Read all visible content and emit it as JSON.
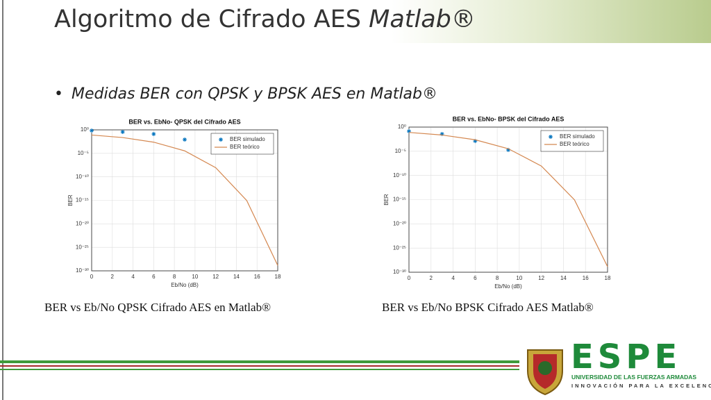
{
  "slide": {
    "title": "Algoritmo de Cifrado AES",
    "title_emphasis": "Matlab®",
    "bullet": "Medidas BER con QPSK y BPSK AES en Matlab®",
    "captions": [
      "BER vs Eb/No QPSK Cifrado AES en Matlab®",
      "BER vs Eb/No BPSK Cifrado AES Matlab®"
    ],
    "logo": {
      "name": "ESPE",
      "line1": "UNIVERSIDAD DE LAS FUERZAS ARMADAS",
      "line2": "INNOVACIÓN PARA LA EXCELENCIA"
    }
  },
  "chart_data": [
    {
      "type": "line",
      "title": "BER vs. EbNo- QPSK del Cifrado AES",
      "x_label": "Eb/No (dB)",
      "y_label": "BER",
      "log_scale": true,
      "grid": true,
      "legend": "north-east",
      "xlim": [
        0,
        18
      ],
      "xticks": [
        0,
        2,
        4,
        6,
        8,
        10,
        12,
        14,
        16,
        18
      ],
      "ylim": [
        1e-30,
        1
      ],
      "yticks": [
        {
          "value": 1,
          "label": "10⁰"
        },
        {
          "value": 1e-05,
          "label": "10⁻⁵"
        },
        {
          "value": 1e-10,
          "label": "10⁻¹⁰"
        },
        {
          "value": 1e-15,
          "label": "10⁻¹⁵"
        },
        {
          "value": 1e-20,
          "label": "10⁻²⁰"
        },
        {
          "value": 1e-25,
          "label": "10⁻²⁵"
        },
        {
          "value": 1e-30,
          "label": "10⁻³⁰"
        }
      ],
      "series": [
        {
          "name": "BER simulado",
          "mode": "markers",
          "color": "#0072bd",
          "x": [
            0,
            3,
            6,
            9
          ],
          "values": [
            0.7,
            0.36,
            0.13,
            0.0085
          ]
        },
        {
          "name": "BER teórico",
          "mode": "line",
          "color": "#d4874f",
          "x": [
            0,
            3,
            6,
            9,
            12,
            15,
            18
          ],
          "values": [
            0.079,
            0.023,
            0.0024,
            3.4e-05,
            9e-09,
            9.4e-16,
            1.4e-29
          ]
        }
      ]
    },
    {
      "type": "line",
      "title": "BER vs. EbNo- BPSK del Cifrado AES",
      "x_label": "Eb/No (dB)",
      "y_label": "BER",
      "log_scale": true,
      "grid": true,
      "legend": "north-east",
      "xlim": [
        0,
        18
      ],
      "xticks": [
        0,
        2,
        4,
        6,
        8,
        10,
        12,
        14,
        16,
        18
      ],
      "ylim": [
        1e-30,
        1
      ],
      "yticks": [
        {
          "value": 1,
          "label": "10⁰"
        },
        {
          "value": 1e-05,
          "label": "10⁻⁵"
        },
        {
          "value": 1e-10,
          "label": "10⁻¹⁰"
        },
        {
          "value": 1e-15,
          "label": "10⁻¹⁵"
        },
        {
          "value": 1e-20,
          "label": "10⁻²⁰"
        },
        {
          "value": 1e-25,
          "label": "10⁻²⁵"
        },
        {
          "value": 1e-30,
          "label": "10⁻³⁰"
        }
      ],
      "series": [
        {
          "name": "BER simulado",
          "mode": "markers",
          "color": "#0072bd",
          "x": [
            0,
            3,
            6,
            9
          ],
          "values": [
            0.14,
            0.037,
            0.0013,
            1.9e-05
          ]
        },
        {
          "name": "BER teórico",
          "mode": "line",
          "color": "#d4874f",
          "x": [
            0,
            3,
            6,
            9,
            12,
            15,
            18
          ],
          "values": [
            0.079,
            0.023,
            0.0024,
            3.4e-05,
            9e-09,
            9.4e-16,
            1.4e-29
          ]
        }
      ]
    }
  ]
}
